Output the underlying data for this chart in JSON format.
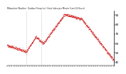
{
  "title": "Milwaukee Weather  Outdoor Temp (vs)  Heat Index per Minute (Last 24 Hours)",
  "ylim": [
    36,
    95
  ],
  "yticks": [
    40,
    50,
    60,
    70,
    80,
    90
  ],
  "background_color": "#ffffff",
  "line_color": "#cc0000",
  "vline_color": "#888888",
  "vline_positions": [
    0.18,
    0.32
  ],
  "num_points": 1440,
  "noise_seed": 42
}
